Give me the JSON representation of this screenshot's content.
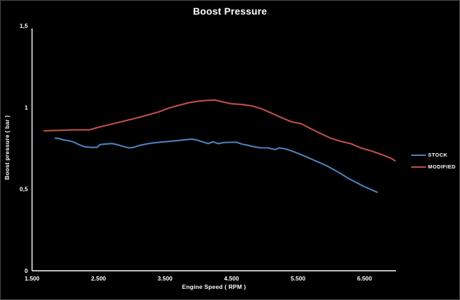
{
  "window": {
    "title": "Boost Pressure"
  },
  "chart_data": {
    "type": "line",
    "title": "Boost Pressure",
    "xlabel": "Engine Speed ( RPM )",
    "ylabel": "Boost pressure ( bar )",
    "xlim": [
      1500,
      7000
    ],
    "ylim": [
      0,
      1.5
    ],
    "grid": false,
    "background_color": "#000000",
    "axis_color": "#ffffff",
    "legend_position": "right",
    "x_ticks": [
      {
        "label": "1.500",
        "value": 1500
      },
      {
        "label": "2.500",
        "value": 2500
      },
      {
        "label": "3.500",
        "value": 3500
      },
      {
        "label": "4.500",
        "value": 4500
      },
      {
        "label": "5.500",
        "value": 5500
      },
      {
        "label": "6.500",
        "value": 6500
      }
    ],
    "y_ticks": [
      {
        "label": "0",
        "value": 0
      },
      {
        "label": "0,5",
        "value": 0.5
      },
      {
        "label": "1",
        "value": 1
      },
      {
        "label": "1,5",
        "value": 1.5
      }
    ],
    "series": [
      {
        "name": "STOCK",
        "color": "#4f81bd",
        "points": [
          [
            1850,
            0.812
          ],
          [
            1900,
            0.81
          ],
          [
            1980,
            0.8
          ],
          [
            2060,
            0.795
          ],
          [
            2130,
            0.787
          ],
          [
            2230,
            0.768
          ],
          [
            2300,
            0.758
          ],
          [
            2400,
            0.755
          ],
          [
            2480,
            0.756
          ],
          [
            2520,
            0.772
          ],
          [
            2600,
            0.776
          ],
          [
            2700,
            0.779
          ],
          [
            2780,
            0.772
          ],
          [
            2880,
            0.76
          ],
          [
            2960,
            0.752
          ],
          [
            3030,
            0.756
          ],
          [
            3120,
            0.768
          ],
          [
            3220,
            0.776
          ],
          [
            3330,
            0.783
          ],
          [
            3450,
            0.788
          ],
          [
            3570,
            0.792
          ],
          [
            3700,
            0.797
          ],
          [
            3800,
            0.802
          ],
          [
            3900,
            0.806
          ],
          [
            3980,
            0.8
          ],
          [
            4060,
            0.79
          ],
          [
            4150,
            0.778
          ],
          [
            4220,
            0.79
          ],
          [
            4300,
            0.778
          ],
          [
            4380,
            0.785
          ],
          [
            4470,
            0.786
          ],
          [
            4570,
            0.787
          ],
          [
            4660,
            0.775
          ],
          [
            4750,
            0.768
          ],
          [
            4850,
            0.758
          ],
          [
            4950,
            0.752
          ],
          [
            5050,
            0.752
          ],
          [
            5150,
            0.742
          ],
          [
            5220,
            0.752
          ],
          [
            5320,
            0.745
          ],
          [
            5430,
            0.73
          ],
          [
            5540,
            0.712
          ],
          [
            5640,
            0.695
          ],
          [
            5750,
            0.675
          ],
          [
            5850,
            0.658
          ],
          [
            5960,
            0.636
          ],
          [
            6060,
            0.614
          ],
          [
            6160,
            0.59
          ],
          [
            6270,
            0.562
          ],
          [
            6380,
            0.54
          ],
          [
            6480,
            0.518
          ],
          [
            6580,
            0.5
          ],
          [
            6690,
            0.481
          ]
        ]
      },
      {
        "name": "MODIFIED",
        "color": "#c0504d",
        "points": [
          [
            1680,
            0.857
          ],
          [
            1800,
            0.858
          ],
          [
            1950,
            0.86
          ],
          [
            2100,
            0.862
          ],
          [
            2250,
            0.863
          ],
          [
            2350,
            0.862
          ],
          [
            2500,
            0.878
          ],
          [
            2650,
            0.893
          ],
          [
            2800,
            0.908
          ],
          [
            2950,
            0.923
          ],
          [
            3100,
            0.938
          ],
          [
            3250,
            0.955
          ],
          [
            3400,
            0.972
          ],
          [
            3550,
            0.995
          ],
          [
            3700,
            1.012
          ],
          [
            3850,
            1.028
          ],
          [
            4000,
            1.038
          ],
          [
            4150,
            1.043
          ],
          [
            4250,
            1.045
          ],
          [
            4350,
            1.035
          ],
          [
            4500,
            1.022
          ],
          [
            4650,
            1.018
          ],
          [
            4800,
            1.01
          ],
          [
            4950,
            0.992
          ],
          [
            5100,
            0.965
          ],
          [
            5250,
            0.938
          ],
          [
            5400,
            0.912
          ],
          [
            5550,
            0.9
          ],
          [
            5700,
            0.868
          ],
          [
            5850,
            0.838
          ],
          [
            6000,
            0.81
          ],
          [
            6150,
            0.792
          ],
          [
            6300,
            0.777
          ],
          [
            6450,
            0.751
          ],
          [
            6600,
            0.734
          ],
          [
            6750,
            0.713
          ],
          [
            6900,
            0.688
          ],
          [
            6960,
            0.673
          ]
        ]
      }
    ]
  }
}
